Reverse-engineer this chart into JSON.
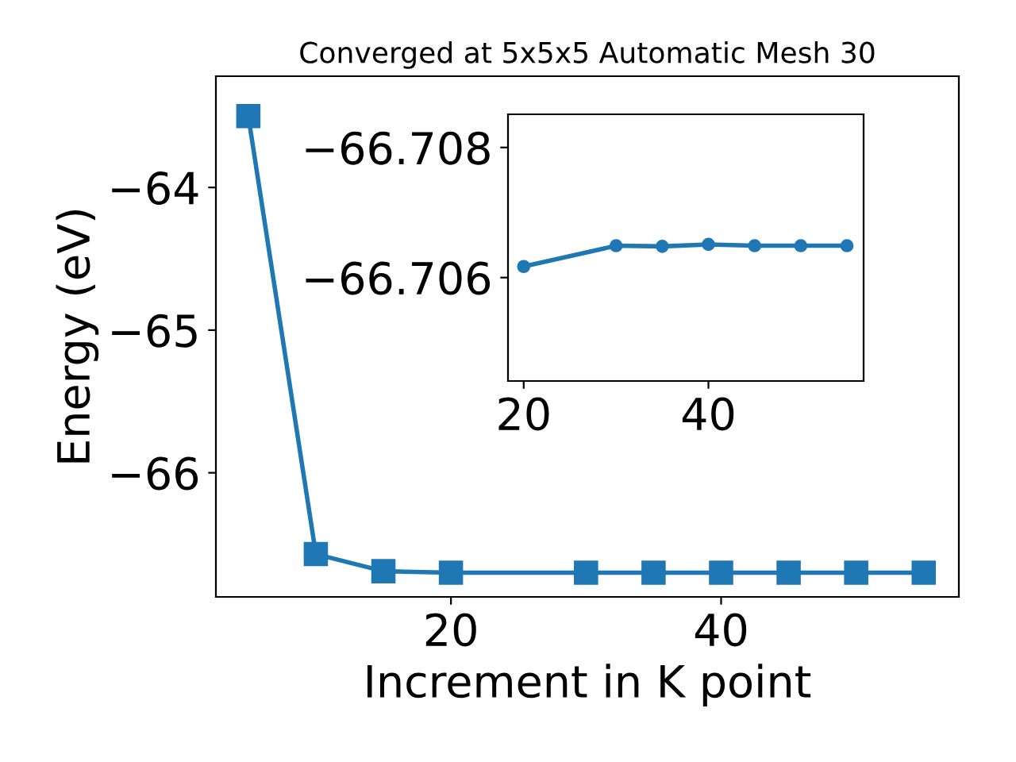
{
  "chart_data": [
    {
      "type": "line",
      "title": "Converged at 5x5x5 Automatic Mesh 30",
      "xlabel": "Increment in K point",
      "ylabel": "Energy (eV)",
      "x": [
        5,
        10,
        15,
        20,
        30,
        35,
        40,
        45,
        50,
        55
      ],
      "series": [
        {
          "color": "#1f77b4",
          "values": [
            -63.5,
            -66.57,
            -66.69,
            -66.7,
            -66.7,
            -66.7,
            -66.7,
            -66.7,
            -66.7,
            -66.7
          ]
        }
      ],
      "marker": "square",
      "line_style": "solid",
      "grid": false,
      "legend": false,
      "xlim": [
        2.6,
        57.6
      ],
      "xticks": [
        20,
        40
      ],
      "ylim": [
        -66.87,
        -63.22
      ],
      "yticks": [
        {
          "value": -66,
          "label": "−66"
        },
        {
          "value": -65,
          "label": "−65"
        },
        {
          "value": -64,
          "label": "−64"
        }
      ]
    },
    {
      "type": "line",
      "x": [
        20,
        30,
        35,
        40,
        45,
        50,
        55
      ],
      "series": [
        {
          "color": "#1f77b4",
          "values": [
            -66.70617,
            -66.70649,
            -66.70648,
            -66.70651,
            -66.70649,
            -66.70649,
            -66.70649
          ]
        }
      ],
      "marker": "circle",
      "line_style": "solid",
      "grid": false,
      "legend": false,
      "xlim": [
        18.3,
        56.8
      ],
      "xticks": [
        20,
        40
      ],
      "ylim": [
        -66.70441,
        -66.70851
      ],
      "yticks": [
        {
          "value": -66.708,
          "label": "−66.708"
        },
        {
          "value": -66.706,
          "label": "−66.706"
        }
      ]
    }
  ]
}
